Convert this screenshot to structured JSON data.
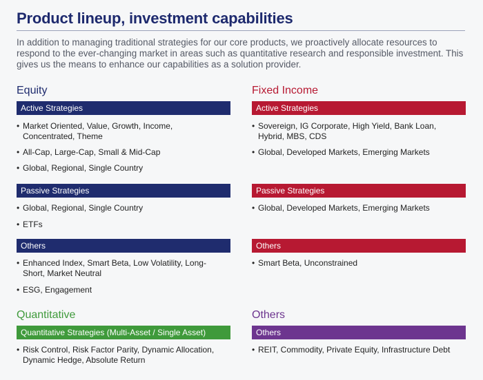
{
  "title": "Product lineup, investment capabilities",
  "intro": "In addition to managing traditional strategies for our core products, we proactively allocate resources to respond to the ever-changing market in areas such as quantitative research and responsible investment. This gives us the means to enhance our capabilities as a solution provider.",
  "bullet": "•",
  "colors": {
    "navy": "#1f2c6e",
    "red": "#b71932",
    "green": "#3f9a3b",
    "purple": "#6d358f"
  },
  "equity": {
    "heading": "Equity",
    "active": {
      "label": "Active Strategies",
      "items": [
        "Market Oriented, Value, Growth, Income, Concentrated, Theme",
        "All-Cap, Large-Cap, Small & Mid-Cap",
        "Global, Regional, Single Country"
      ]
    },
    "passive": {
      "label": "Passive Strategies",
      "items": [
        "Global, Regional, Single Country",
        "ETFs"
      ]
    },
    "others": {
      "label": "Others",
      "items": [
        "Enhanced Index, Smart Beta, Low Volatility, Long-Short, Market Neutral",
        "ESG, Engagement"
      ]
    }
  },
  "fixed_income": {
    "heading": "Fixed Income",
    "active": {
      "label": "Active Strategies",
      "items": [
        "Sovereign, IG Corporate, High Yield, Bank Loan, Hybrid, MBS, CDS",
        "Global, Developed Markets, Emerging Markets"
      ]
    },
    "passive": {
      "label": "Passive Strategies",
      "items": [
        "Global, Developed Markets, Emerging Markets"
      ]
    },
    "others": {
      "label": "Others",
      "items": [
        "Smart Beta, Unconstrained"
      ]
    }
  },
  "quantitative": {
    "heading": "Quantitative",
    "strategies": {
      "label": "Quantitative Strategies (Multi-Asset / Single Asset)",
      "items": [
        "Risk Control, Risk Factor Parity, Dynamic Allocation, Dynamic Hedge, Absolute Return"
      ]
    }
  },
  "others_section": {
    "heading": "Others",
    "others": {
      "label": "Others",
      "items": [
        "REIT, Commodity, Private Equity, Infrastructure Debt"
      ]
    }
  }
}
